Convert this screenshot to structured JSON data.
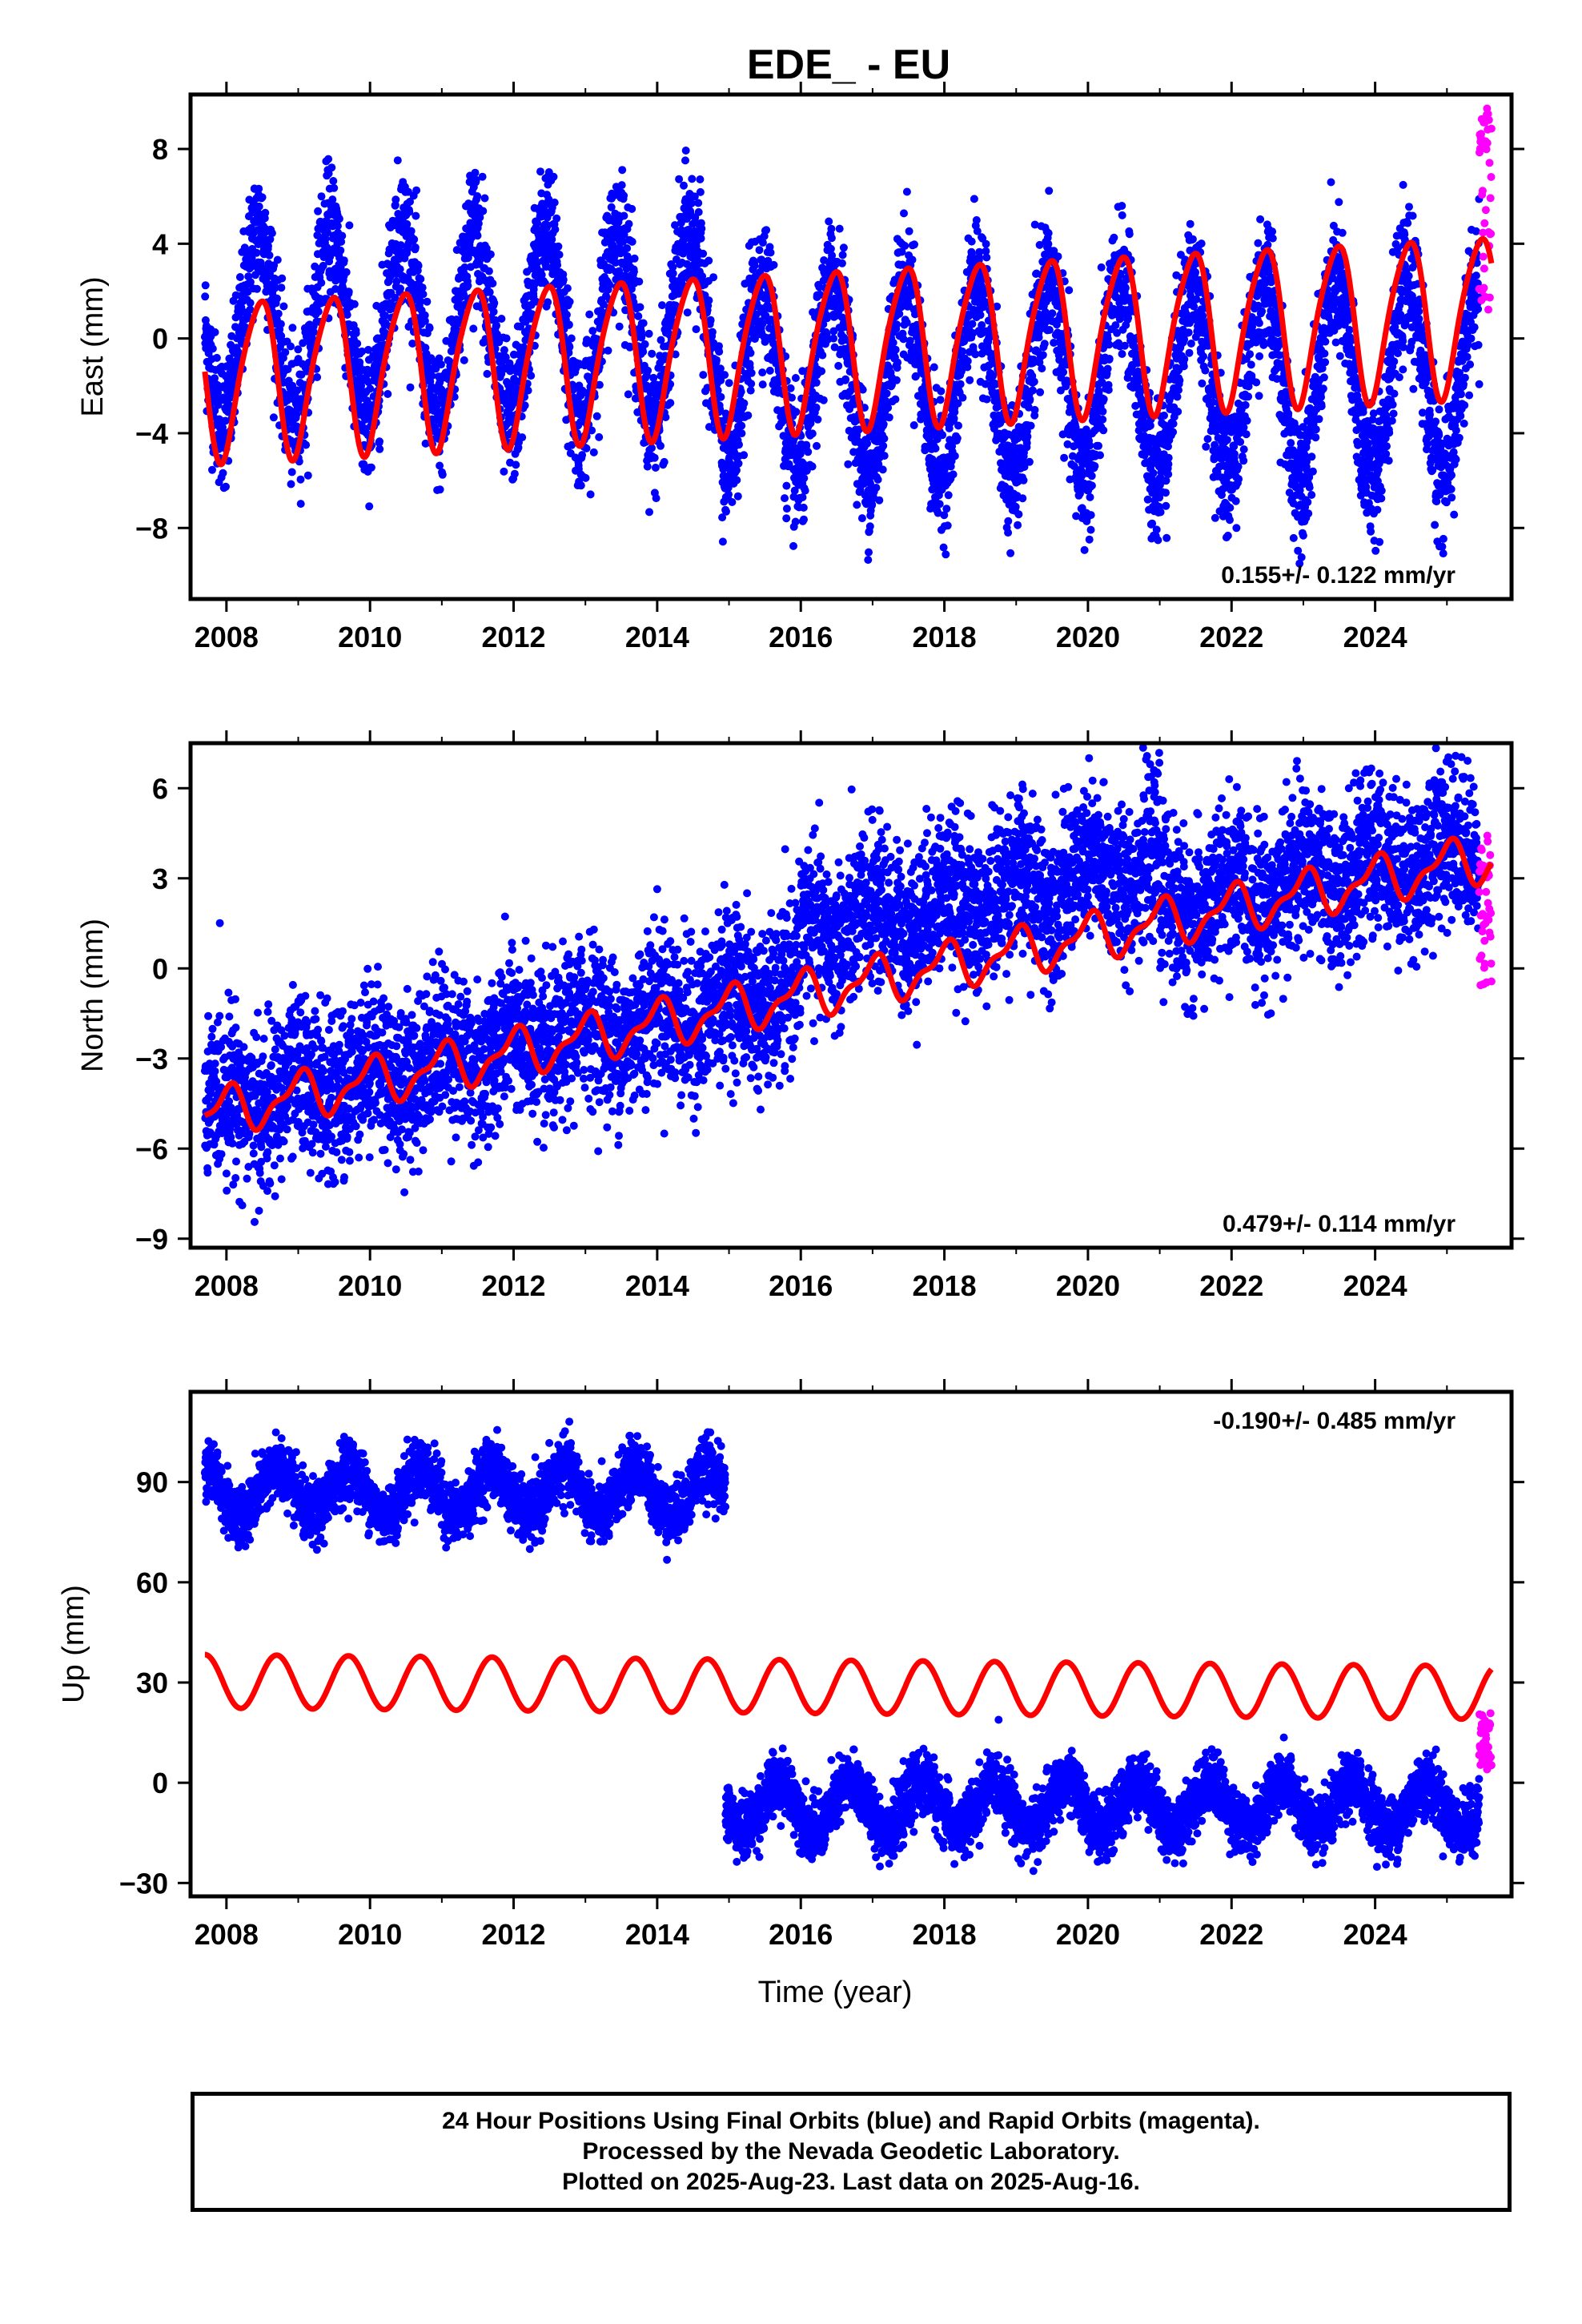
{
  "title": "EDE_ - EU",
  "chart_data": {
    "type": "scatter",
    "x_ticks": [
      2008,
      2010,
      2012,
      2014,
      2016,
      2018,
      2020,
      2022,
      2024
    ],
    "xlim": [
      2007.5,
      2025.9
    ],
    "xlabel": "Time (year)",
    "panels": [
      {
        "component": "east",
        "ylabel": "East (mm)",
        "ylim": [
          -11,
          10.3
        ],
        "yticks": [
          -8,
          -4,
          0,
          4,
          8
        ],
        "ytick_labels": [
          "−8",
          "−4",
          "0",
          "4",
          "8"
        ],
        "rate": "0.155+/- 0.122 mm/yr",
        "rate_position": "bottom-right",
        "model": {
          "offset_2007": -1.8,
          "trend": 0.155,
          "annual_amp": 3.3,
          "annual_phase_peak": 0.45,
          "semi_amp": 0.5
        },
        "observed": {
          "start": 2007.7,
          "end": 2025.45,
          "offset": 0.5,
          "trend": 0.0,
          "annual_amp": 4.0,
          "noise": 1.4,
          "jumps": [
            {
              "year": 2014.9,
              "delta": -2.2
            }
          ]
        },
        "rapid": {
          "start": 2025.45,
          "end": 2025.62,
          "range": [
            1.0,
            9.8
          ]
        }
      },
      {
        "component": "north",
        "ylabel": "North (mm)",
        "ylim": [
          -9.3,
          7.5
        ],
        "yticks": [
          -9,
          -6,
          -3,
          0,
          3,
          6
        ],
        "ytick_labels": [
          "−9",
          "−6",
          "−3",
          "0",
          "3",
          "6"
        ],
        "rate": "0.479+/- 0.114 mm/yr",
        "rate_position": "bottom-right",
        "model": {
          "offset_2007": -5.2,
          "trend": 0.479,
          "annual_amp": 0.7,
          "annual_phase_peak": 0.0,
          "semi_amp": 0.3
        },
        "observed": {
          "start": 2007.7,
          "end": 2025.45,
          "offset": -5.0,
          "trend": 0.48,
          "annual_amp": 0.6,
          "noise": 1.3,
          "jumps": [
            {
              "year": 2016.0,
              "delta": 1.8
            },
            {
              "year": 2021.0,
              "delta": -1.6
            }
          ]
        },
        "rapid": {
          "start": 2025.45,
          "end": 2025.62,
          "range": [
            -0.6,
            4.7
          ]
        }
      },
      {
        "component": "up",
        "ylabel": "Up (mm)",
        "ylim": [
          -34,
          117
        ],
        "yticks": [
          -30,
          0,
          30,
          60,
          90
        ],
        "ytick_labels": [
          "−30",
          "0",
          "30",
          "60",
          "90"
        ],
        "rate": "-0.190+/- 0.485 mm/yr",
        "rate_position": "top-right",
        "model": {
          "offset_2007": 30.5,
          "trend": -0.19,
          "annual_amp": 8.0,
          "annual_phase_peak": 0.7,
          "semi_amp": 0.0
        },
        "observed": {
          "start": 2007.7,
          "end": 2025.45,
          "offset": 87.0,
          "trend": 0.0,
          "annual_amp": 7.0,
          "noise": 4.5,
          "jumps": [
            {
              "year": 2014.95,
              "delta": -94.0
            }
          ]
        },
        "rapid": {
          "start": 2025.45,
          "end": 2025.62,
          "range": [
            2,
            21
          ]
        }
      }
    ],
    "series": [
      {
        "name": "Final Orbits (blue)",
        "color": "#0000ff"
      },
      {
        "name": "Rapid Orbits (magenta)",
        "color": "#ff00ff"
      },
      {
        "name": "model",
        "color": "#ff0000"
      }
    ]
  },
  "footer": {
    "line1": "24 Hour Positions Using Final Orbits (blue) and Rapid Orbits (magenta).",
    "line2": "Processed by the Nevada Geodetic Laboratory.",
    "line3": "Plotted on 2025-Aug-23. Last data on 2025-Aug-16."
  }
}
